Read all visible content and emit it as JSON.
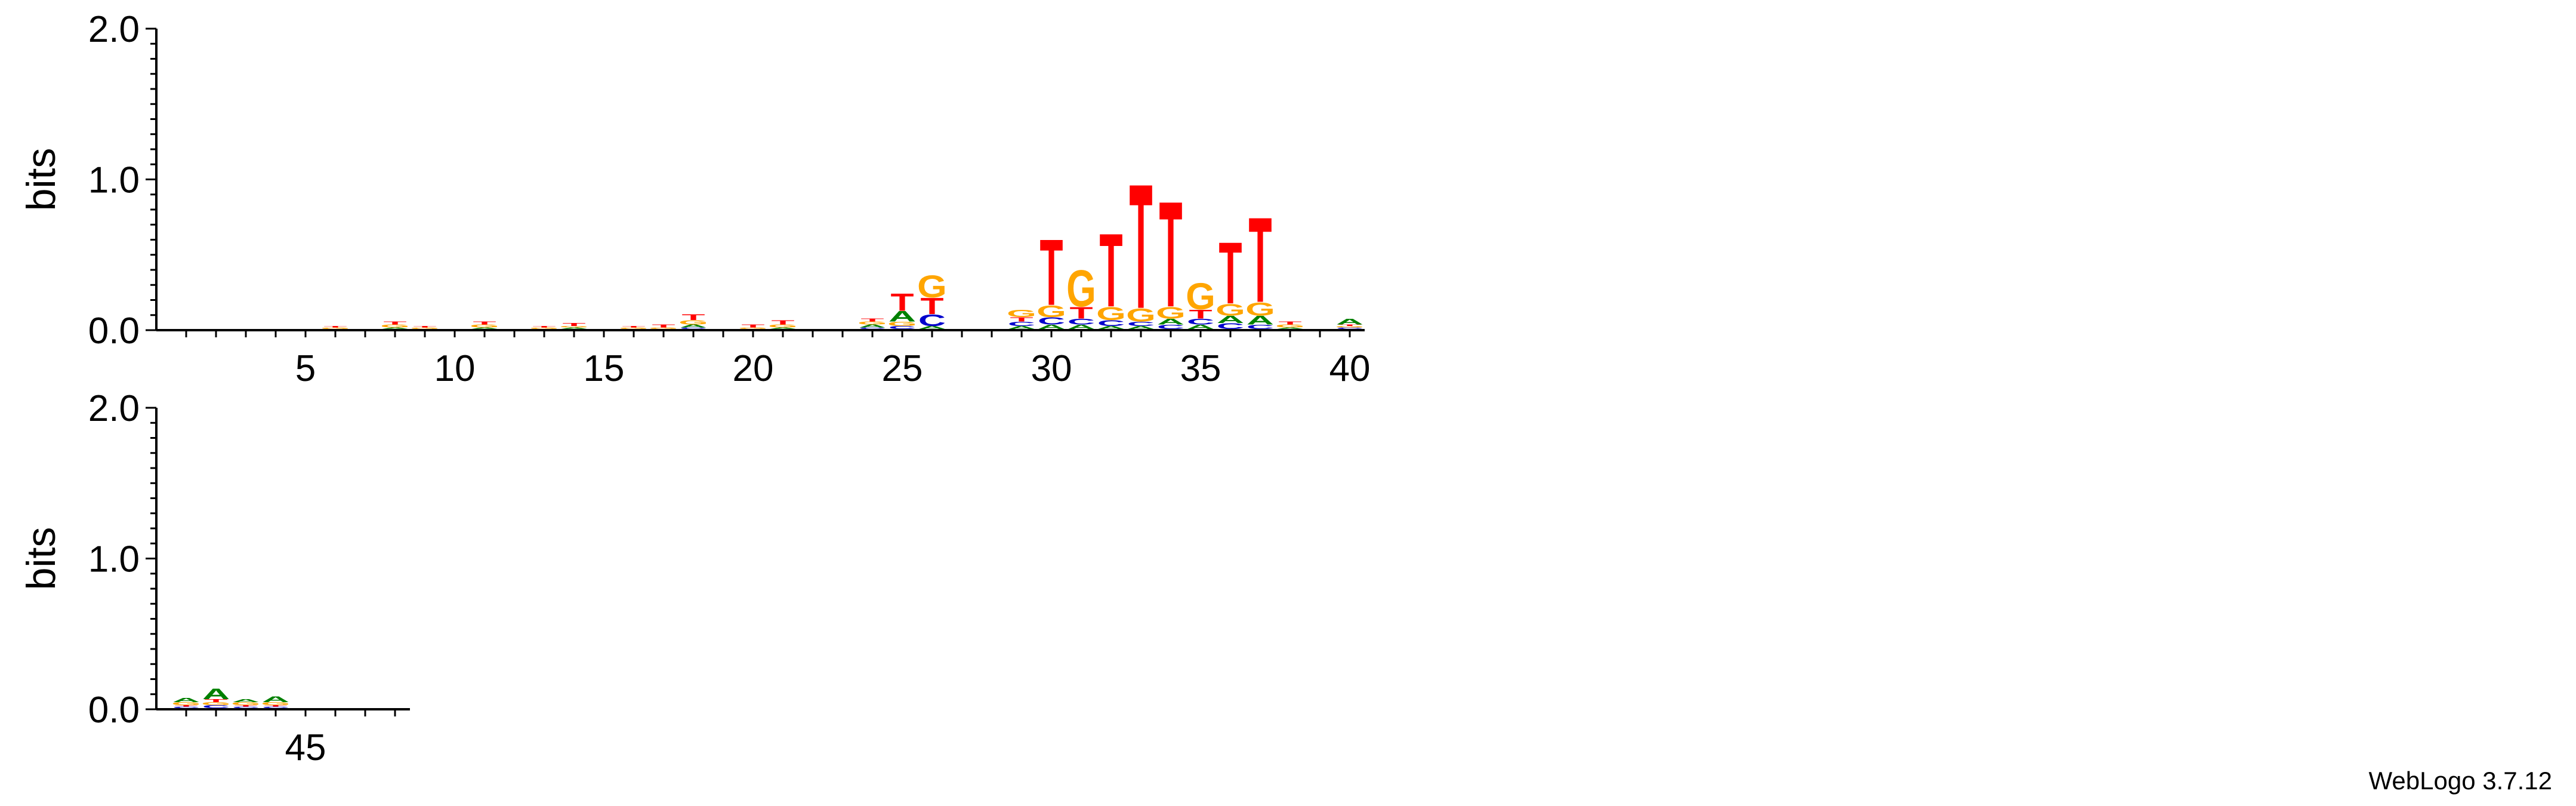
{
  "credit": "WebLogo 3.7.12",
  "colors": {
    "A": "#008000",
    "C": "#0000cc",
    "G": "#ffa500",
    "T": "#ff0000"
  },
  "chart_data": {
    "type": "sequence-logo",
    "ylabel": "bits",
    "ylim": [
      0,
      2.0
    ],
    "yticks": [
      "0.0",
      "1.0",
      "2.0"
    ],
    "rows": [
      {
        "start": 1,
        "end": 40,
        "xticks": [
          5,
          10,
          15,
          20,
          25,
          30,
          35,
          40
        ]
      },
      {
        "start": 41,
        "end": 48,
        "xticks": [
          45
        ]
      }
    ],
    "positions": [
      {
        "pos": 1,
        "stack": []
      },
      {
        "pos": 2,
        "stack": []
      },
      {
        "pos": 3,
        "stack": []
      },
      {
        "pos": 4,
        "stack": []
      },
      {
        "pos": 5,
        "stack": []
      },
      {
        "pos": 6,
        "stack": [
          [
            "G",
            0.01
          ],
          [
            "T",
            0.01
          ]
        ]
      },
      {
        "pos": 7,
        "stack": []
      },
      {
        "pos": 8,
        "stack": [
          [
            "A",
            0.01
          ],
          [
            "G",
            0.02
          ],
          [
            "T",
            0.02
          ]
        ]
      },
      {
        "pos": 9,
        "stack": [
          [
            "G",
            0.01
          ],
          [
            "T",
            0.01
          ]
        ]
      },
      {
        "pos": 10,
        "stack": []
      },
      {
        "pos": 11,
        "stack": [
          [
            "A",
            0.01
          ],
          [
            "G",
            0.02
          ],
          [
            "T",
            0.02
          ]
        ]
      },
      {
        "pos": 12,
        "stack": []
      },
      {
        "pos": 13,
        "stack": [
          [
            "G",
            0.01
          ],
          [
            "T",
            0.01
          ]
        ]
      },
      {
        "pos": 14,
        "stack": [
          [
            "A",
            0.01
          ],
          [
            "G",
            0.01
          ],
          [
            "T",
            0.02
          ]
        ]
      },
      {
        "pos": 15,
        "stack": []
      },
      {
        "pos": 16,
        "stack": [
          [
            "G",
            0.01
          ],
          [
            "T",
            0.01
          ]
        ]
      },
      {
        "pos": 17,
        "stack": [
          [
            "G",
            0.01
          ],
          [
            "T",
            0.02
          ]
        ]
      },
      {
        "pos": 18,
        "stack": [
          [
            "C",
            0.01
          ],
          [
            "A",
            0.02
          ],
          [
            "G",
            0.03
          ],
          [
            "T",
            0.04
          ]
        ]
      },
      {
        "pos": 19,
        "stack": []
      },
      {
        "pos": 20,
        "stack": [
          [
            "G",
            0.01
          ],
          [
            "T",
            0.02
          ]
        ]
      },
      {
        "pos": 21,
        "stack": [
          [
            "A",
            0.01
          ],
          [
            "G",
            0.02
          ],
          [
            "T",
            0.03
          ]
        ]
      },
      {
        "pos": 22,
        "stack": []
      },
      {
        "pos": 23,
        "stack": []
      },
      {
        "pos": 24,
        "stack": [
          [
            "C",
            0.01
          ],
          [
            "A",
            0.02
          ],
          [
            "G",
            0.02
          ],
          [
            "T",
            0.02
          ]
        ]
      },
      {
        "pos": 25,
        "stack": [
          [
            "C",
            0.02
          ],
          [
            "G",
            0.03
          ],
          [
            "A",
            0.07
          ],
          [
            "T",
            0.12
          ]
        ]
      },
      {
        "pos": 26,
        "stack": [
          [
            "A",
            0.02
          ],
          [
            "C",
            0.08
          ],
          [
            "T",
            0.11
          ],
          [
            "G",
            0.15
          ]
        ]
      },
      {
        "pos": 27,
        "stack": []
      },
      {
        "pos": 28,
        "stack": []
      },
      {
        "pos": 29,
        "stack": [
          [
            "A",
            0.02
          ],
          [
            "C",
            0.03
          ],
          [
            "T",
            0.03
          ],
          [
            "G",
            0.05
          ]
        ]
      },
      {
        "pos": 30,
        "stack": [
          [
            "A",
            0.03
          ],
          [
            "C",
            0.05
          ],
          [
            "G",
            0.08
          ],
          [
            "T",
            0.45
          ]
        ]
      },
      {
        "pos": 31,
        "stack": [
          [
            "A",
            0.03
          ],
          [
            "C",
            0.04
          ],
          [
            "T",
            0.08
          ],
          [
            "G",
            0.25
          ]
        ]
      },
      {
        "pos": 32,
        "stack": [
          [
            "A",
            0.02
          ],
          [
            "C",
            0.04
          ],
          [
            "G",
            0.09
          ],
          [
            "T",
            0.5
          ]
        ]
      },
      {
        "pos": 33,
        "stack": [
          [
            "A",
            0.02
          ],
          [
            "C",
            0.03
          ],
          [
            "G",
            0.09
          ],
          [
            "T",
            0.85
          ]
        ]
      },
      {
        "pos": 34,
        "stack": [
          [
            "C",
            0.03
          ],
          [
            "A",
            0.04
          ],
          [
            "G",
            0.08
          ],
          [
            "T",
            0.72
          ]
        ]
      },
      {
        "pos": 35,
        "stack": [
          [
            "A",
            0.03
          ],
          [
            "C",
            0.04
          ],
          [
            "T",
            0.06
          ],
          [
            "G",
            0.18
          ]
        ]
      },
      {
        "pos": 36,
        "stack": [
          [
            "C",
            0.04
          ],
          [
            "A",
            0.05
          ],
          [
            "G",
            0.08
          ],
          [
            "T",
            0.42
          ]
        ]
      },
      {
        "pos": 37,
        "stack": [
          [
            "C",
            0.03
          ],
          [
            "A",
            0.06
          ],
          [
            "G",
            0.09
          ],
          [
            "T",
            0.58
          ]
        ]
      },
      {
        "pos": 38,
        "stack": [
          [
            "A",
            0.01
          ],
          [
            "G",
            0.02
          ],
          [
            "T",
            0.02
          ]
        ]
      },
      {
        "pos": 39,
        "stack": []
      },
      {
        "pos": 40,
        "stack": [
          [
            "C",
            0.01
          ],
          [
            "G",
            0.01
          ],
          [
            "T",
            0.01
          ],
          [
            "A",
            0.04
          ]
        ]
      },
      {
        "pos": 41,
        "stack": [
          [
            "C",
            0.01
          ],
          [
            "T",
            0.01
          ],
          [
            "G",
            0.02
          ],
          [
            "A",
            0.03
          ]
        ]
      },
      {
        "pos": 42,
        "stack": [
          [
            "C",
            0.02
          ],
          [
            "G",
            0.02
          ],
          [
            "T",
            0.02
          ],
          [
            "A",
            0.07
          ]
        ]
      },
      {
        "pos": 43,
        "stack": [
          [
            "C",
            0.01
          ],
          [
            "T",
            0.01
          ],
          [
            "G",
            0.02
          ],
          [
            "A",
            0.02
          ]
        ]
      },
      {
        "pos": 44,
        "stack": [
          [
            "C",
            0.01
          ],
          [
            "T",
            0.01
          ],
          [
            "G",
            0.02
          ],
          [
            "A",
            0.04
          ]
        ]
      },
      {
        "pos": 45,
        "stack": []
      },
      {
        "pos": 46,
        "stack": []
      },
      {
        "pos": 47,
        "stack": []
      },
      {
        "pos": 48,
        "stack": []
      }
    ]
  }
}
